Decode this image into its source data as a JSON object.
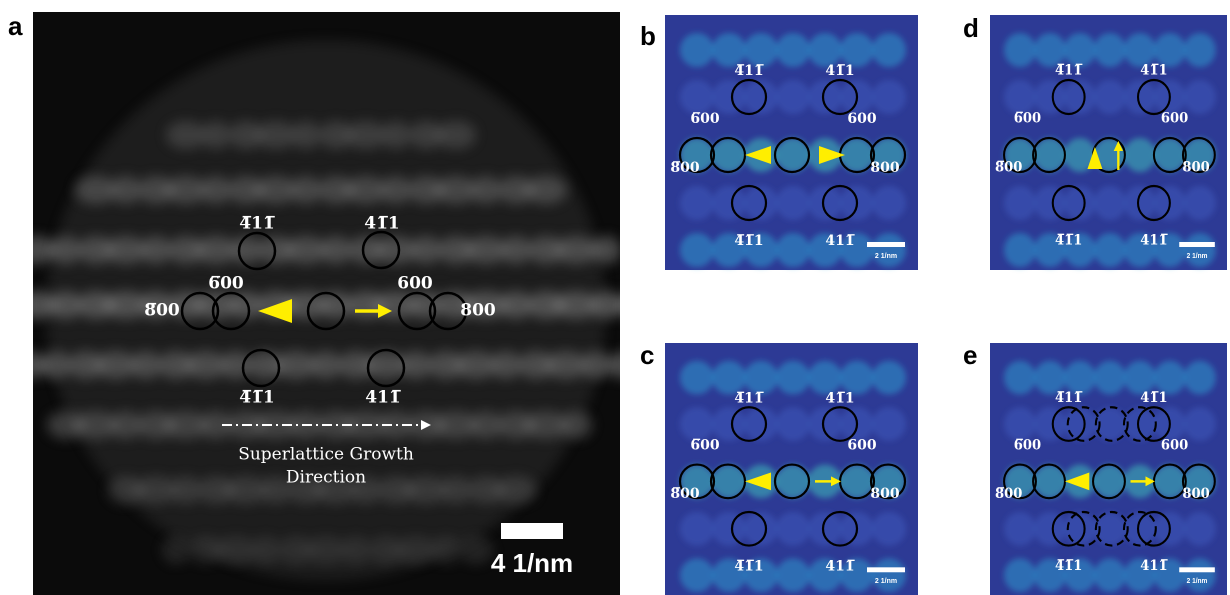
{
  "panel_a": {
    "label": "a",
    "indices": [
      "4̅11̅",
      "41̅1",
      "6̅00",
      "8̅00",
      "600",
      "800",
      "4̅1̅1",
      "411̅"
    ],
    "annotation": [
      "Superlattice Growth",
      "Direction"
    ],
    "scale_bar": "4 1/nm"
  },
  "panels": [
    {
      "label": "b",
      "indices": [
        "4̅11̅",
        "41̅1",
        "6̅00",
        "8̅00",
        "600",
        "800",
        "4̅1̅1",
        "411̅"
      ],
      "scale_bar": "2 1/nm"
    },
    {
      "label": "d",
      "indices": [
        "4̅11̅",
        "41̅1",
        "6̅00",
        "8̅00",
        "600",
        "800",
        "4̅1̅1",
        "411̅"
      ],
      "scale_bar": "2 1/nm"
    },
    {
      "label": "c",
      "indices": [
        "4̅11̅",
        "41̅1",
        "6̅00",
        "8̅00",
        "600",
        "800",
        "4̅1̅1",
        "411̅"
      ],
      "scale_bar": "2 1/nm"
    },
    {
      "label": "e",
      "indices": [
        "4̅11̅",
        "41̅1",
        "6̅00",
        "8̅00",
        "600",
        "800",
        "4̅1̅1",
        "411̅"
      ],
      "scale_bar": "2 1/nm"
    }
  ]
}
